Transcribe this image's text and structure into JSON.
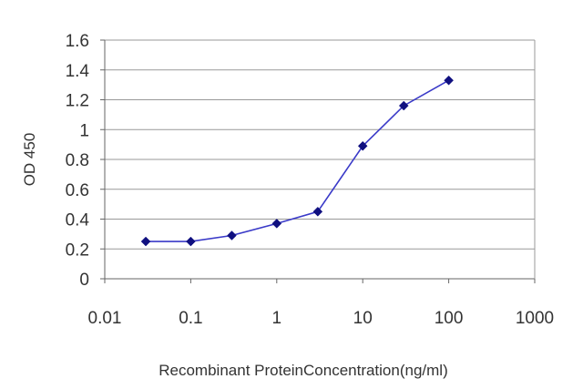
{
  "chart_data": {
    "type": "line",
    "title": "",
    "xlabel": "Recombinant ProteinConcentration(ng/ml)",
    "ylabel": "OD 450",
    "x_scale": "log",
    "xlim": [
      0.01,
      1000
    ],
    "ylim": [
      0,
      1.6
    ],
    "x_ticks": [
      "0.01",
      "0.1",
      "1",
      "10",
      "100",
      "1000"
    ],
    "y_ticks": [
      "0",
      "0.2",
      "0.4",
      "0.6",
      "0.8",
      "1",
      "1.2",
      "1.4",
      "1.6"
    ],
    "grid": "horizontal",
    "legend": "none",
    "series": [
      {
        "x": [
          0.03,
          0.1,
          0.3,
          1,
          3,
          10,
          30,
          100
        ],
        "y": [
          0.25,
          0.25,
          0.29,
          0.37,
          0.45,
          0.89,
          1.16,
          1.33
        ]
      }
    ],
    "colors": {
      "line": "#3a3ac8",
      "marker": "#101080",
      "grid": "#999999",
      "axis": "#666666"
    }
  }
}
